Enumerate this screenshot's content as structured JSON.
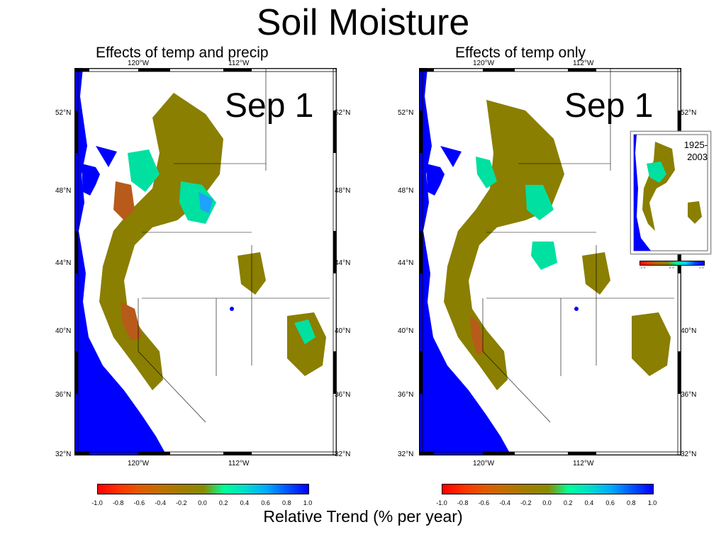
{
  "title": "Soil Moisture",
  "panels": [
    {
      "subtitle": "Effects of temp and precip",
      "date_label": "Sep 1"
    },
    {
      "subtitle": "Effects of temp only",
      "date_label": "Sep 1"
    }
  ],
  "map_axes": {
    "lat_labels": [
      "52°N",
      "48°N",
      "44°N",
      "40°N",
      "36°N",
      "32°N"
    ],
    "lon_labels": [
      "120°W",
      "112°W"
    ]
  },
  "colorbar": {
    "ticks": [
      "-1.0",
      "-0.8",
      "-0.6",
      "-0.4",
      "-0.2",
      "0.0",
      "0.2",
      "0.4",
      "0.6",
      "0.8",
      "1.0"
    ],
    "colors": [
      "#ff0000",
      "#ff3300",
      "#e05a00",
      "#c07000",
      "#a07d00",
      "#8a8a00",
      "#00ff99",
      "#00ddcc",
      "#00aaff",
      "#0055ff",
      "#0000ff"
    ],
    "units": "Relative Trend (% per year)"
  },
  "inset": {
    "years": [
      "1925-",
      "2003"
    ]
  },
  "colors": {
    "ocean": "#0000ff",
    "trend_neutral": "#8a7f00",
    "trend_dry": "#b85a1a",
    "trend_wet": "#00e0a0",
    "trend_very_wet": "#20a0ff"
  }
}
